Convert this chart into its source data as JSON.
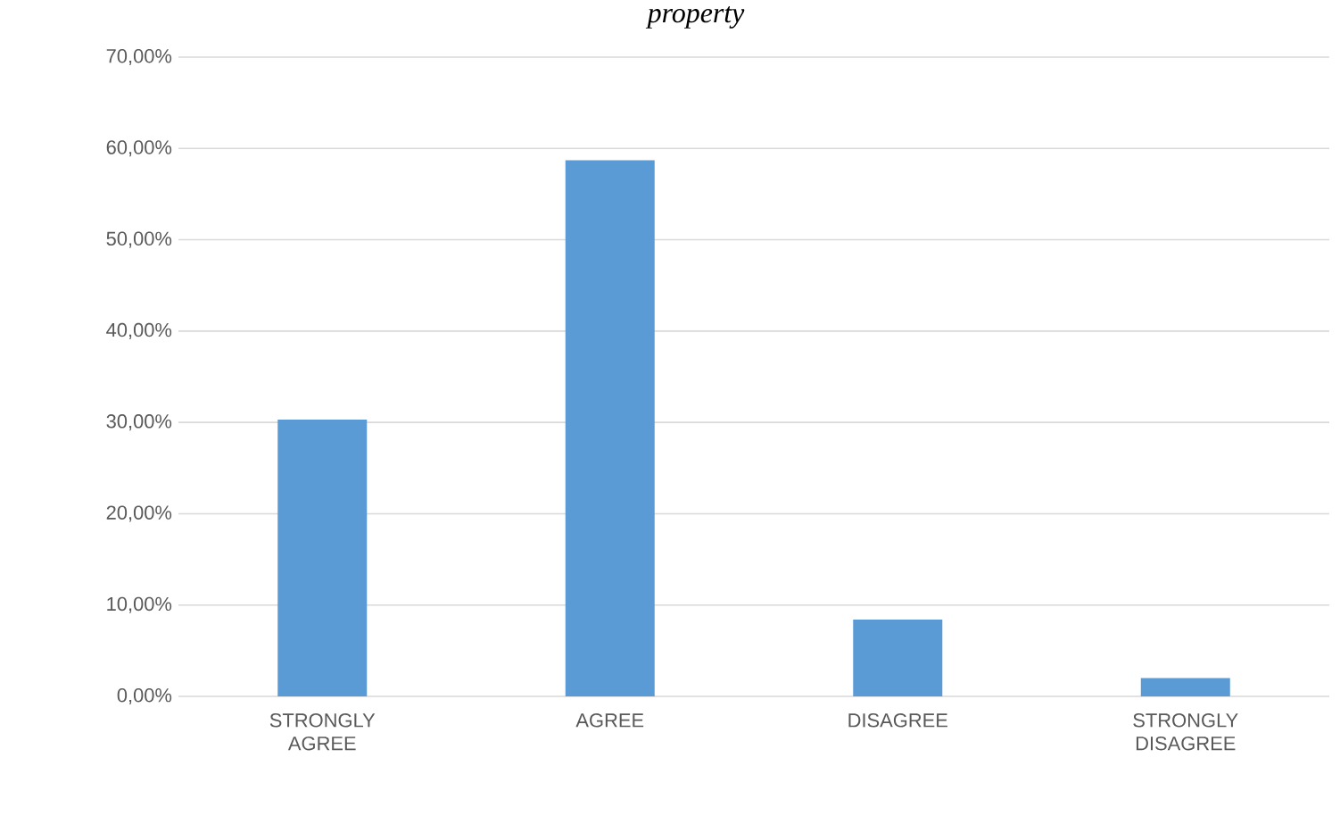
{
  "chart_data": {
    "type": "bar",
    "title": "property",
    "categories": [
      "STRONGLY AGREE",
      "AGREE",
      "DISAGREE",
      "STRONGLY DISAGREE"
    ],
    "values": [
      30.3,
      58.7,
      8.4,
      2.0
    ],
    "color": "#5b9bd5",
    "ylim": [
      0,
      70
    ],
    "yticks": [
      {
        "value": 0,
        "label": "0,00%"
      },
      {
        "value": 10,
        "label": "10,00%"
      },
      {
        "value": 20,
        "label": "20,00%"
      },
      {
        "value": 30,
        "label": "30,00%"
      },
      {
        "value": 40,
        "label": "40,00%"
      },
      {
        "value": 50,
        "label": "50,00%"
      },
      {
        "value": 60,
        "label": "60,00%"
      },
      {
        "value": 70,
        "label": "70,00%"
      }
    ],
    "grid": "y"
  }
}
